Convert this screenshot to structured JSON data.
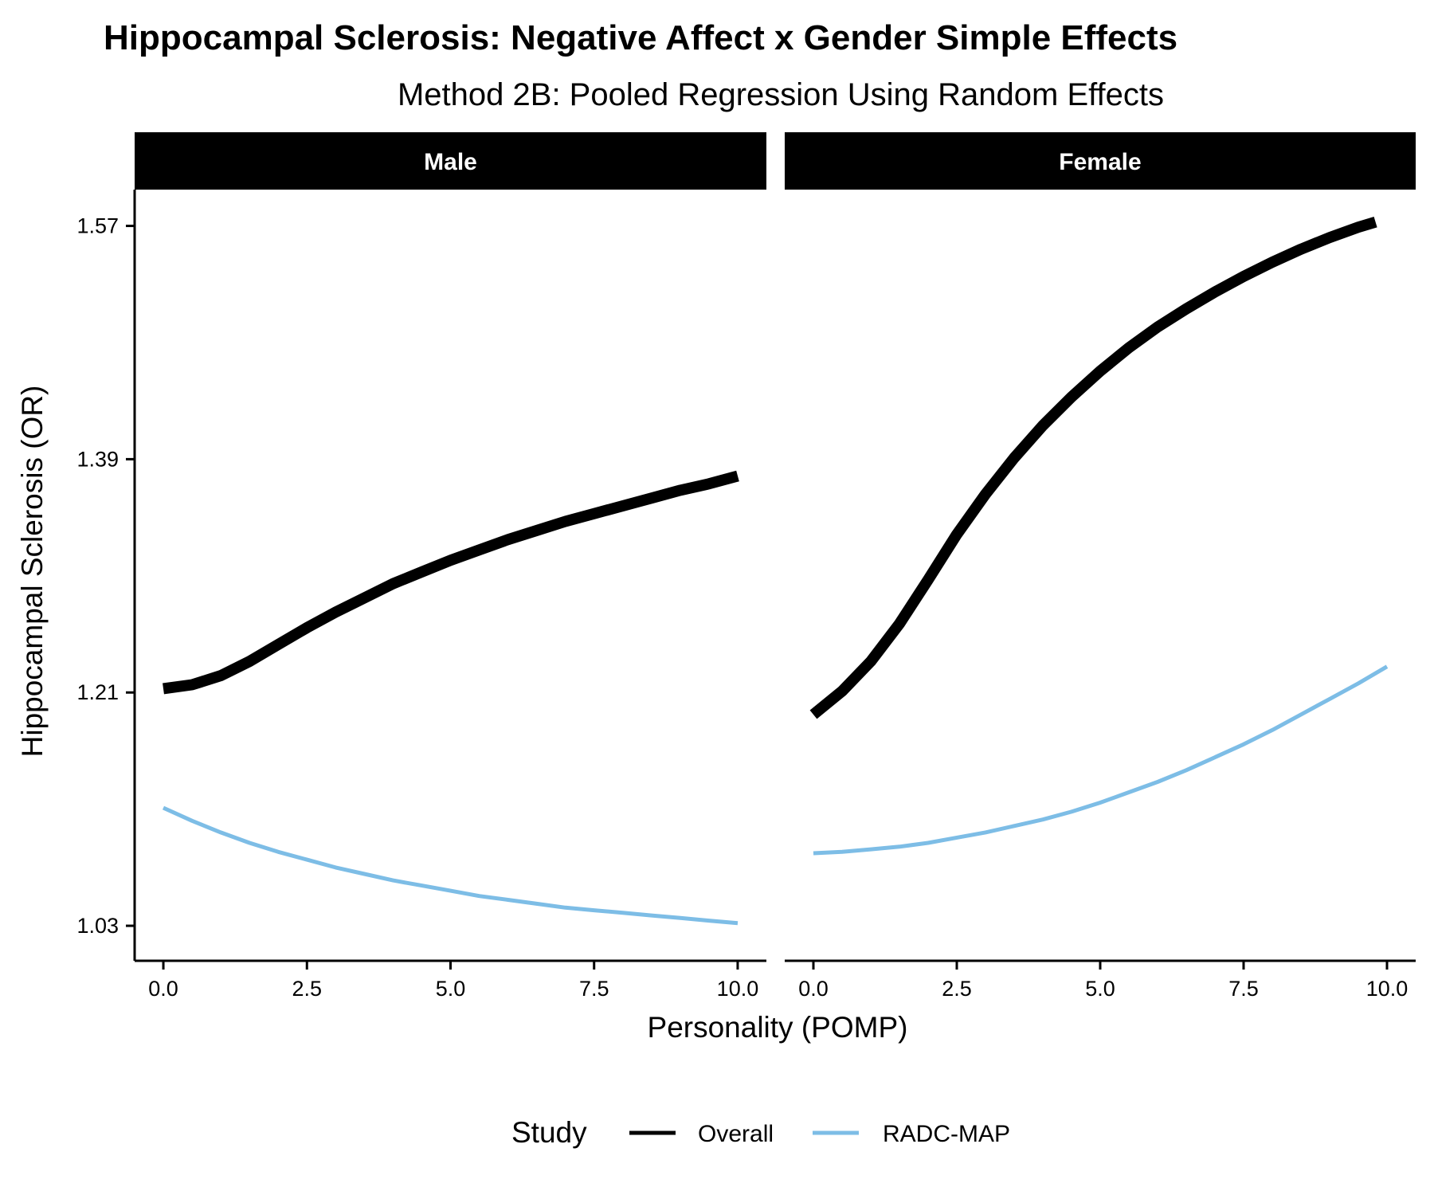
{
  "chart_data": {
    "type": "line",
    "title": "Hippocampal Sclerosis: Negative Affect x Gender Simple Effects",
    "subtitle": "Method 2B: Pooled Regression Using Random Effects",
    "xlabel": "Personality (POMP)",
    "ylabel": "Hippocampal Sclerosis (OR)",
    "xlim": [
      -0.5,
      10.5
    ],
    "ylim": [
      1.003,
      1.598
    ],
    "x_ticks": [
      "0.0",
      "2.5",
      "5.0",
      "7.5",
      "10.0"
    ],
    "x_tick_values": [
      0,
      2.5,
      5,
      7.5,
      10
    ],
    "y_ticks": [
      "1.03",
      "1.21",
      "1.39",
      "1.57"
    ],
    "y_tick_values": [
      1.03,
      1.21,
      1.39,
      1.57
    ],
    "grid": false,
    "legend": {
      "title": "Study",
      "position": "bottom"
    },
    "colors": {
      "Overall": "#000000",
      "RADC-MAP": "#7dbde6"
    },
    "facets": [
      {
        "label": "Male",
        "series": [
          {
            "name": "Overall",
            "x": [
              0,
              0.5,
              1,
              1.5,
              2,
              2.5,
              3,
              3.5,
              4,
              4.5,
              5,
              5.5,
              6,
              6.5,
              7,
              7.5,
              8,
              8.5,
              9,
              9.5,
              10
            ],
            "y": [
              1.213,
              1.216,
              1.223,
              1.234,
              1.247,
              1.26,
              1.272,
              1.283,
              1.294,
              1.303,
              1.312,
              1.32,
              1.328,
              1.335,
              1.342,
              1.348,
              1.354,
              1.36,
              1.366,
              1.371,
              1.377
            ]
          },
          {
            "name": "RADC-MAP",
            "x": [
              0,
              0.5,
              1,
              1.5,
              2,
              2.5,
              3,
              3.5,
              4,
              4.5,
              5,
              5.5,
              6,
              6.5,
              7,
              7.5,
              8,
              8.5,
              9,
              9.5,
              10
            ],
            "y": [
              1.121,
              1.111,
              1.102,
              1.094,
              1.087,
              1.081,
              1.075,
              1.07,
              1.065,
              1.061,
              1.057,
              1.053,
              1.05,
              1.047,
              1.044,
              1.042,
              1.04,
              1.038,
              1.036,
              1.034,
              1.032
            ]
          }
        ]
      },
      {
        "label": "Female",
        "series": [
          {
            "name": "Overall",
            "x": [
              0,
              0.5,
              1,
              1.5,
              2,
              2.5,
              3,
              3.5,
              4,
              4.5,
              5,
              5.5,
              6,
              6.5,
              7,
              7.5,
              8,
              8.5,
              9,
              9.5,
              9.8
            ],
            "y": [
              1.193,
              1.211,
              1.234,
              1.263,
              1.297,
              1.332,
              1.363,
              1.391,
              1.416,
              1.438,
              1.458,
              1.476,
              1.492,
              1.506,
              1.519,
              1.531,
              1.542,
              1.552,
              1.561,
              1.569,
              1.573
            ]
          },
          {
            "name": "RADC-MAP",
            "x": [
              0,
              0.5,
              1,
              1.5,
              2,
              2.5,
              3,
              3.5,
              4,
              4.5,
              5,
              5.5,
              6,
              6.5,
              7,
              7.5,
              8,
              8.5,
              9,
              9.5,
              10
            ],
            "y": [
              1.086,
              1.087,
              1.089,
              1.091,
              1.094,
              1.098,
              1.102,
              1.107,
              1.112,
              1.118,
              1.125,
              1.133,
              1.141,
              1.15,
              1.16,
              1.17,
              1.181,
              1.193,
              1.205,
              1.217,
              1.23
            ]
          }
        ]
      }
    ]
  }
}
